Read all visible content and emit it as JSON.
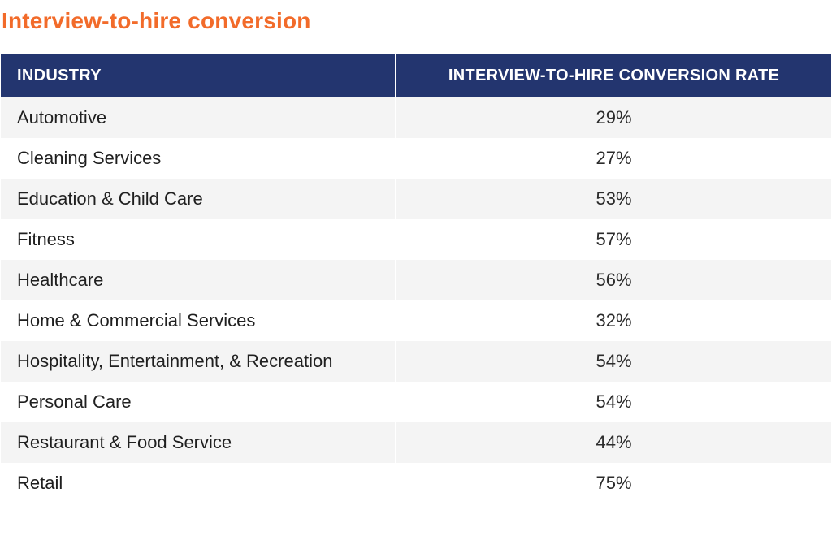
{
  "title": "Interview-to-hire conversion",
  "colors": {
    "title": "#f26b2a",
    "header_bg": "#23356f",
    "header_text": "#ffffff",
    "row_shade": "#f4f4f4"
  },
  "chart_data": {
    "type": "table",
    "title": "Interview-to-hire conversion",
    "columns": [
      "INDUSTRY",
      "INTERVIEW-TO-HIRE CONVERSION RATE"
    ],
    "rows": [
      [
        "Automotive",
        "29%"
      ],
      [
        "Cleaning Services",
        "27%"
      ],
      [
        "Education & Child Care",
        "53%"
      ],
      [
        "Fitness",
        "57%"
      ],
      [
        "Healthcare",
        "56%"
      ],
      [
        "Home & Commercial Services",
        "32%"
      ],
      [
        "Hospitality, Entertainment, & Recreation",
        "54%"
      ],
      [
        "Personal Care",
        "54%"
      ],
      [
        "Restaurant & Food Service",
        "44%"
      ],
      [
        "Retail",
        "75%"
      ]
    ]
  }
}
